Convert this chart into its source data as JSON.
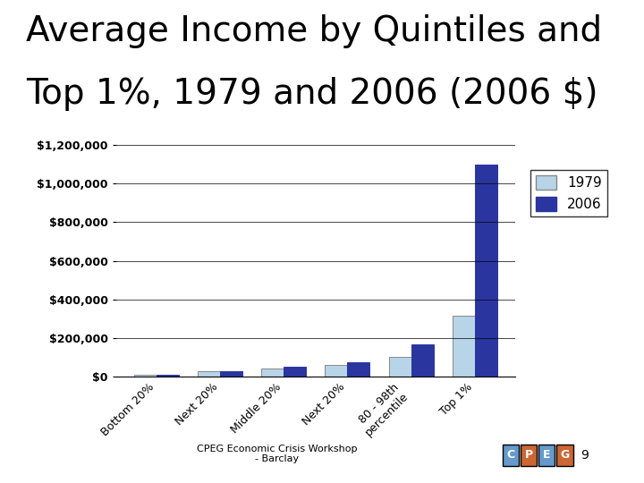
{
  "title_line1": "Average Income by Quintiles and",
  "title_line2": "Top 1%, 1979 and 2006 (2006 $)",
  "categories": [
    "Bottom 20%",
    "Next 20%",
    "Middle 20%",
    "Next 20%",
    "80 - 98th\npercentile",
    "Top 1%"
  ],
  "values_1979": [
    10000,
    27000,
    44000,
    62000,
    102000,
    315000
  ],
  "values_2006": [
    11500,
    31000,
    52000,
    76000,
    168000,
    1100000
  ],
  "color_1979": "#b8d4e8",
  "color_2006": "#2b35a0",
  "ylim": [
    0,
    1300000
  ],
  "yticks": [
    0,
    200000,
    400000,
    600000,
    800000,
    1000000,
    1200000
  ],
  "ytick_labels": [
    "$0",
    "$200,000",
    "$400,000",
    "$600,000",
    "$800,000",
    "$1,000,000",
    "$1,200,000"
  ],
  "legend_labels": [
    "1979",
    "2006"
  ],
  "footer": "CPEG Economic Crisis Workshop\n- Barclay",
  "background_color": "#ffffff",
  "title_fontsize": 28,
  "tick_fontsize": 9,
  "legend_fontsize": 11,
  "page_number": "9"
}
